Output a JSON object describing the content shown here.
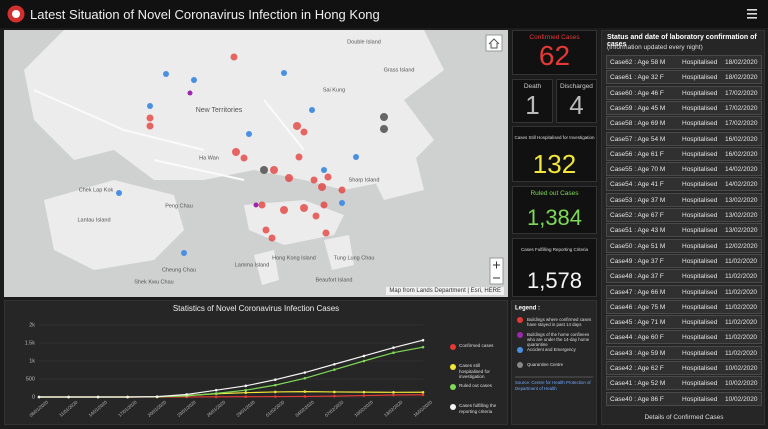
{
  "header": {
    "title": "Latest Situation of Novel Coronavirus Infection in Hong Kong"
  },
  "map": {
    "places": [
      "New Territories",
      "Sharp Island",
      "Double Island",
      "Grass Island",
      "Ha Wan",
      "Chek Lap Kok",
      "Lantau Island",
      "Peng Chau",
      "Hong Kong Island",
      "Lamma Island",
      "Cheung Chau",
      "Shek Kwu Chau",
      "Tung Lung Chau",
      "Beaufort Island",
      "Sai Kung"
    ],
    "attribution": "Map from Lands Department | Esri, HERE"
  },
  "stats": [
    {
      "label": "Confirmed Cases",
      "value": "62"
    },
    {
      "label": "Death",
      "value": "1"
    },
    {
      "label": "Discharged",
      "value": "4"
    },
    {
      "label": "Cases Still Hospitalised for Investigation",
      "value": "132"
    },
    {
      "label": "Ruled out Cases",
      "value": "1,384"
    },
    {
      "label": "Cases Fulfilling Reporting Criteria",
      "value": "1,578"
    }
  ],
  "cases": {
    "title": "Status and date of laboratory confirmation of cases",
    "subtitle": "(Information updated every night)",
    "rows": [
      [
        "Case62 : Age 58 M",
        "Hospitalised",
        "18/02/2020"
      ],
      [
        "Case61 : Age 32 F",
        "Hospitalised",
        "18/02/2020"
      ],
      [
        "Case60 : Age 46 F",
        "Hospitalised",
        "17/02/2020"
      ],
      [
        "Case59 : Age 45 M",
        "Hospitalised",
        "17/02/2020"
      ],
      [
        "Case58 : Age 69 M",
        "Hospitalised",
        "17/02/2020"
      ],
      [
        "Case57 : Age 54 M",
        "Hospitalised",
        "16/02/2020"
      ],
      [
        "Case56 : Age 61 F",
        "Hospitalised",
        "16/02/2020"
      ],
      [
        "Case55 : Age 70 M",
        "Hospitalised",
        "14/02/2020"
      ],
      [
        "Case54 : Age 41 F",
        "Hospitalised",
        "14/02/2020"
      ],
      [
        "Case53 : Age 37 M",
        "Hospitalised",
        "13/02/2020"
      ],
      [
        "Case52 : Age 67 F",
        "Hospitalised",
        "13/02/2020"
      ],
      [
        "Case51 : Age 43 M",
        "Hospitalised",
        "13/02/2020"
      ],
      [
        "Case50 : Age 51 M",
        "Hospitalised",
        "12/02/2020"
      ],
      [
        "Case49 : Age 37 F",
        "Hospitalised",
        "11/02/2020"
      ],
      [
        "Case48 : Age 37 F",
        "Hospitalised",
        "11/02/2020"
      ],
      [
        "Case47 : Age 66 M",
        "Hospitalised",
        "11/02/2020"
      ],
      [
        "Case46 : Age 75 M",
        "Hospitalised",
        "11/02/2020"
      ],
      [
        "Case45 : Age 71 M",
        "Hospitalised",
        "11/02/2020"
      ],
      [
        "Case44 : Age 60 F",
        "Hospitalised",
        "11/02/2020"
      ],
      [
        "Case43 : Age 59 M",
        "Hospitalised",
        "11/02/2020"
      ],
      [
        "Case42 : Age 62 F",
        "Hospitalised",
        "10/02/2020"
      ],
      [
        "Case41 : Age 52 M",
        "Hospitalised",
        "10/02/2020"
      ],
      [
        "Case40 : Age 86 F",
        "Hospitalised",
        "10/02/2020"
      ]
    ],
    "footer": "Details of Confirmed Cases"
  },
  "chart_data": {
    "type": "line",
    "title": "Statistics of Novel Coronavirus Infection Cases",
    "categories": [
      "08/01/2020",
      "11/01/2020",
      "14/01/2020",
      "17/01/2020",
      "20/01/2020",
      "23/01/2020",
      "26/01/2020",
      "29/01/2020",
      "01/02/2020",
      "04/02/2020",
      "07/02/2020",
      "10/02/2020",
      "13/02/2020",
      "16/02/2020"
    ],
    "series": [
      {
        "name": "Confirmed cases",
        "color": "#e53935",
        "values": [
          0,
          0,
          0,
          0,
          0,
          2,
          5,
          8,
          12,
          15,
          25,
          40,
          55,
          62
        ]
      },
      {
        "name": "Cases still hospitalised for investigation",
        "color": "#f2e63a",
        "values": [
          0,
          0,
          0,
          0,
          5,
          40,
          90,
          120,
          140,
          150,
          140,
          135,
          130,
          132
        ]
      },
      {
        "name": "Ruled out cases",
        "color": "#7ed957",
        "values": [
          0,
          0,
          0,
          0,
          5,
          30,
          100,
          190,
          330,
          520,
          760,
          1000,
          1230,
          1384
        ]
      },
      {
        "name": "Cases fulfilling the reporting criteria",
        "color": "#f4f4f4",
        "values": [
          0,
          0,
          0,
          0,
          10,
          70,
          190,
          310,
          480,
          680,
          910,
          1140,
          1370,
          1578
        ]
      }
    ],
    "ylim": [
      0,
      2000
    ],
    "yticks": [
      0,
      500,
      {
        "value": 1000,
        "label": "1k"
      },
      {
        "value": 1500,
        "label": "1.5k"
      },
      {
        "value": 2000,
        "label": "2k"
      }
    ],
    "grid": true,
    "legend": "right"
  },
  "legend": {
    "title": "Legend :",
    "items": [
      "Buildings where confirmed cases have stayed in past 14 days",
      "Buildings of the home confinees who are under the 14-day home quarantine",
      "Accident and Emergency",
      "Quarantine Centre"
    ],
    "source": "Source: Centre for Health Protection of Department of Health"
  }
}
